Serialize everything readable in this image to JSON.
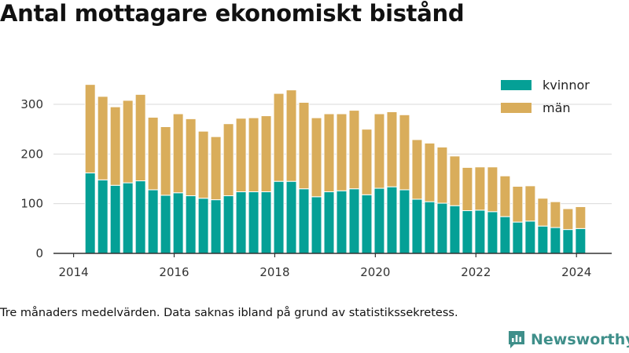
{
  "chart_data": {
    "type": "bar",
    "stacked": true,
    "title": "Antal mottagare ekonomiskt bistånd",
    "x_tick_labels": [
      "2014",
      "2016",
      "2018",
      "2020",
      "2022",
      "2024"
    ],
    "y_tick_labels": [
      "0",
      "100",
      "200",
      "300"
    ],
    "ylim": [
      0,
      360
    ],
    "xlim": [
      2013.6,
      2024.7
    ],
    "grid": "horizontal",
    "legend_position": "top-right",
    "x": [
      2014.33,
      2014.58,
      2014.83,
      2015.08,
      2015.33,
      2015.58,
      2015.83,
      2016.08,
      2016.33,
      2016.58,
      2016.83,
      2017.08,
      2017.33,
      2017.58,
      2017.83,
      2018.08,
      2018.33,
      2018.58,
      2018.83,
      2019.08,
      2019.33,
      2019.58,
      2019.83,
      2020.08,
      2020.33,
      2020.58,
      2020.83,
      2021.08,
      2021.33,
      2021.58,
      2021.83,
      2022.08,
      2022.33,
      2022.58,
      2022.83,
      2023.08,
      2023.33,
      2023.58,
      2023.83,
      2024.08
    ],
    "series": [
      {
        "name": "kvinnor",
        "color": "#05a096",
        "values": [
          162,
          148,
          137,
          142,
          146,
          128,
          117,
          122,
          116,
          111,
          108,
          116,
          124,
          124,
          124,
          145,
          145,
          130,
          114,
          124,
          126,
          130,
          118,
          131,
          134,
          128,
          109,
          104,
          101,
          96,
          86,
          87,
          84,
          74,
          63,
          65,
          55,
          52,
          48,
          50
        ]
      },
      {
        "name": "män",
        "color": "#d9ad5b",
        "values": [
          178,
          168,
          158,
          166,
          174,
          146,
          138,
          159,
          155,
          135,
          127,
          145,
          148,
          149,
          153,
          177,
          184,
          174,
          159,
          157,
          155,
          158,
          132,
          150,
          151,
          151,
          120,
          118,
          113,
          100,
          87,
          87,
          90,
          82,
          72,
          71,
          56,
          52,
          42,
          44
        ]
      }
    ]
  },
  "footnote": "Tre månaders medelvärden. Data saknas ibland på grund av statistikssekretess.",
  "brand": {
    "name": "Newsworthy",
    "color": "#3f8f8a",
    "icon": "newsworthy-logo-icon"
  }
}
